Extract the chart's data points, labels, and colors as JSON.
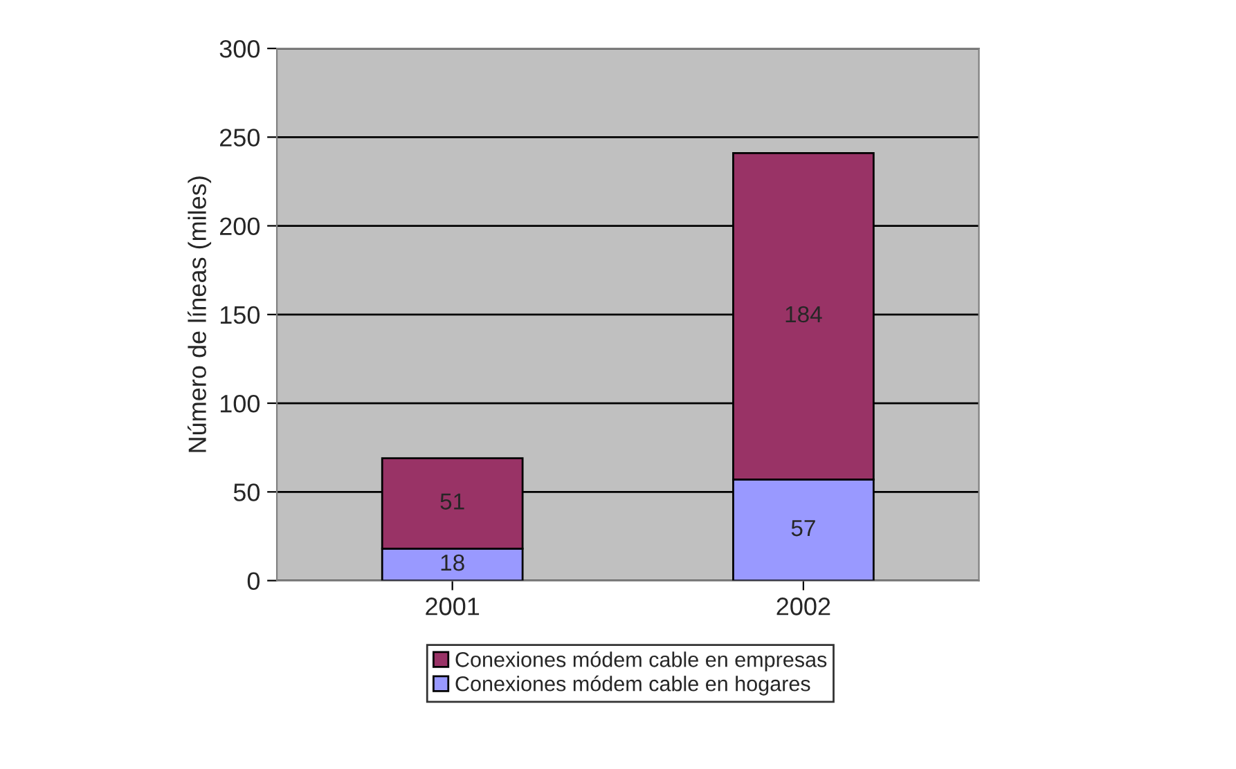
{
  "chart_data": {
    "type": "bar",
    "stacked": true,
    "categories": [
      "2001",
      "2002"
    ],
    "ylabel": "Número de líneas (miles)",
    "ylim": [
      0,
      300
    ],
    "yticks": [
      0,
      50,
      100,
      150,
      200,
      250,
      300
    ],
    "grid": "y",
    "legend": "bottom",
    "data_labels": true,
    "series": [
      {
        "name": "Conexiones módem cable en hogares",
        "color": "#9999ff",
        "values": [
          18,
          57
        ]
      },
      {
        "name": "Conexiones módem cable en empresas",
        "color": "#993366",
        "values": [
          51,
          184
        ]
      }
    ]
  }
}
